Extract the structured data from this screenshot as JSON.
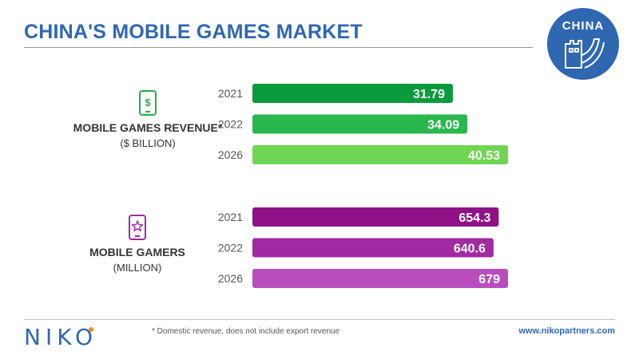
{
  "title": "CHINA'S MOBILE GAMES MARKET",
  "badge": {
    "text": "CHINA",
    "bg_color": "#2f67b1"
  },
  "sections": [
    {
      "label": "MOBILE GAMES REVENUE*",
      "unit": "($ BILLION)",
      "icon": "dollar-phone-icon",
      "icon_color": "#2aa84a"
    },
    {
      "label": "MOBILE GAMERS",
      "unit": "(MILLION)",
      "icon": "star-phone-icon",
      "icon_color": "#9b2ca0"
    }
  ],
  "chart_data": [
    {
      "type": "bar",
      "orientation": "horizontal",
      "title": "MOBILE GAMES REVENUE* ($ BILLION)",
      "categories": [
        "2021",
        "2022",
        "2026"
      ],
      "values": [
        31.79,
        34.09,
        40.53
      ],
      "labels": [
        "31.79",
        "34.09",
        "40.53"
      ],
      "colors": [
        "#0b9a3c",
        "#2ab84e",
        "#6fd552"
      ],
      "xlim": [
        0,
        40.53
      ]
    },
    {
      "type": "bar",
      "orientation": "horizontal",
      "title": "MOBILE GAMERS (MILLION)",
      "categories": [
        "2021",
        "2022",
        "2026"
      ],
      "values": [
        654.3,
        640.6,
        679
      ],
      "labels": [
        "654.3",
        "640.6",
        "679"
      ],
      "colors": [
        "#8e1286",
        "#a02aa2",
        "#b94dbe"
      ],
      "xlim": [
        0,
        679
      ]
    }
  ],
  "footer": {
    "logo": "NIKO",
    "footnote": "* Domestic revenue, does not include export revenue",
    "website": "www.nikopartners.com",
    "logo_color": "#2f67b1",
    "dot_color": "#f28a1c"
  }
}
